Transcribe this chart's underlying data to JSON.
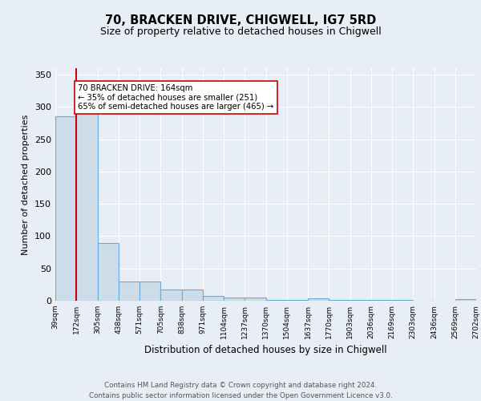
{
  "title1": "70, BRACKEN DRIVE, CHIGWELL, IG7 5RD",
  "title2": "Size of property relative to detached houses in Chigwell",
  "xlabel": "Distribution of detached houses by size in Chigwell",
  "ylabel": "Number of detached properties",
  "bin_labels": [
    "39sqm",
    "172sqm",
    "305sqm",
    "438sqm",
    "571sqm",
    "705sqm",
    "838sqm",
    "971sqm",
    "1104sqm",
    "1237sqm",
    "1370sqm",
    "1504sqm",
    "1637sqm",
    "1770sqm",
    "1903sqm",
    "2036sqm",
    "2169sqm",
    "2303sqm",
    "2436sqm",
    "2569sqm",
    "2702sqm"
  ],
  "bar_heights": [
    285,
    330,
    90,
    30,
    30,
    17,
    17,
    8,
    5,
    5,
    1,
    1,
    4,
    1,
    1,
    1,
    1,
    0,
    0,
    3
  ],
  "bar_color": "#ccdce8",
  "bar_edge_color": "#6aaad4",
  "vline_bin": 1,
  "vline_color": "#cc0000",
  "annotation_line1": "70 BRACKEN DRIVE: 164sqm",
  "annotation_line2": "← 35% of detached houses are smaller (251)",
  "annotation_line3": "65% of semi-detached houses are larger (465) →",
  "ylim": [
    0,
    360
  ],
  "yticks": [
    0,
    50,
    100,
    150,
    200,
    250,
    300,
    350
  ],
  "bg_color": "#e8eef5",
  "grid_color": "#ffffff",
  "footer_line1": "Contains HM Land Registry data © Crown copyright and database right 2024.",
  "footer_line2": "Contains public sector information licensed under the Open Government Licence v3.0."
}
